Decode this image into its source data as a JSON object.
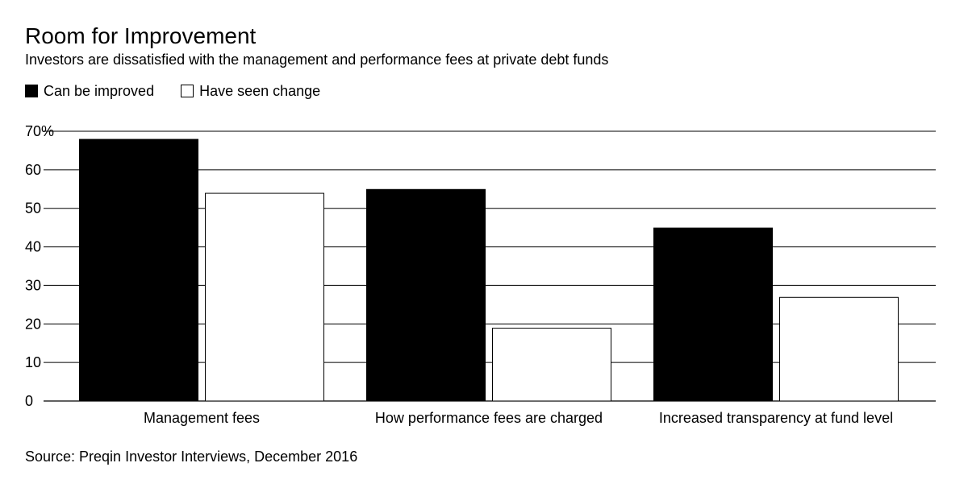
{
  "chart_data": {
    "type": "bar",
    "title": "Room for Improvement",
    "subtitle": "Investors are dissatisfied with the management and performance fees at private debt funds",
    "categories": [
      "Management fees",
      "How performance fees are charged",
      "Increased transparency at fund level"
    ],
    "series": [
      {
        "name": "Can be improved",
        "color": "#000000",
        "values": [
          68,
          55,
          45
        ]
      },
      {
        "name": "Have seen change",
        "color": "#ffffff",
        "values": [
          54,
          19,
          27
        ]
      }
    ],
    "y_ticks": [
      "0",
      "10",
      "20",
      "30",
      "40",
      "50",
      "60",
      "70%"
    ],
    "ylim": [
      0,
      70
    ],
    "xlabel": "",
    "ylabel": "",
    "grid": true,
    "legend_position": "top-left",
    "source": "Source: Preqin Investor Interviews, December 2016"
  }
}
